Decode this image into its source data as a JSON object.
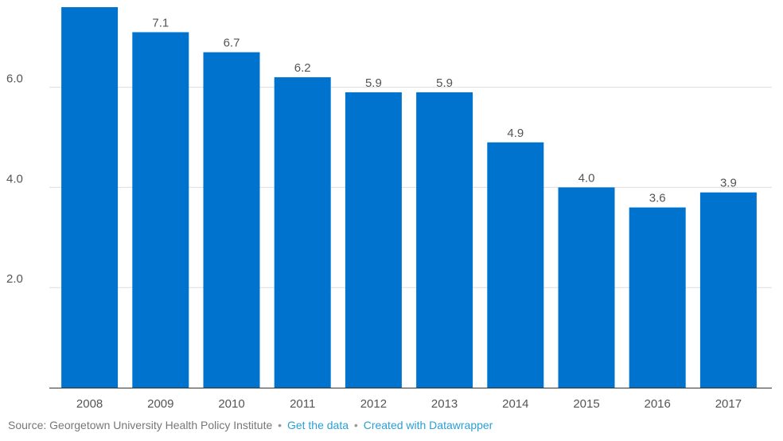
{
  "chart_data": {
    "type": "bar",
    "categories": [
      "2008",
      "2009",
      "2010",
      "2011",
      "2012",
      "2013",
      "2014",
      "2015",
      "2016",
      "2017"
    ],
    "values": [
      7.6,
      7.1,
      6.7,
      6.2,
      5.9,
      5.9,
      4.9,
      4.0,
      3.6,
      3.9
    ],
    "data_labels": [
      "",
      "7.1",
      "6.7",
      "6.2",
      "5.9",
      "5.9",
      "4.9",
      "4.0",
      "3.6",
      "3.9"
    ],
    "y_ticks": [
      "2.0",
      "4.0",
      "6.0"
    ],
    "y_tick_values": [
      2,
      4,
      6
    ],
    "ylim": [
      0,
      7.6
    ],
    "grid": true,
    "bar_color": "#0073cf",
    "title": "",
    "xlabel": "",
    "ylabel": ""
  },
  "footer": {
    "source": "Source: Georgetown University Health Policy Institute",
    "separator": "•",
    "get_data": "Get the data",
    "created_with": "Created with Datawrapper",
    "link_color": "#2a9fd6"
  }
}
